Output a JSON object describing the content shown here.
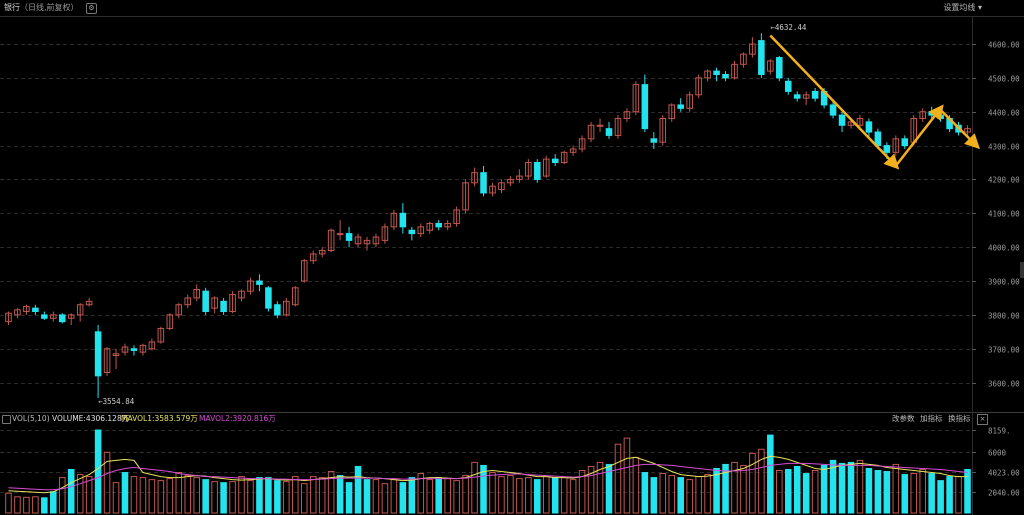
{
  "header": {
    "title": "银行",
    "subtitle": "（日线,前复权）",
    "settings_label": "设置均线 ▾"
  },
  "volume_header": {
    "label": "VOL(5,10)",
    "volume": "VOLUME:4306.128万",
    "mavol1": "MAVOL1:3583.579万",
    "mavol2": "MAVOL2:3920.816万",
    "buttons": [
      "改参数",
      "加指标",
      "换指标"
    ],
    "close": "×"
  },
  "colors": {
    "up": "#c0574e",
    "down": "#23e3ee",
    "ma1": "#e8e35a",
    "ma2": "#d64cd6",
    "arrow": "#f2b01e",
    "grid": "#2a2a2a",
    "axis_text": "#9a9a9a"
  },
  "chart_data": [
    {
      "type": "candlestick",
      "y_ticks": [
        3600,
        3700,
        3800,
        3900,
        4000,
        4100,
        4200,
        4300,
        4400,
        4500,
        4600
      ],
      "ylim": [
        3525,
        4665
      ],
      "annotations": [
        {
          "label": "←3554.84",
          "x_index": 10,
          "value": 3554.84
        },
        {
          "label": "←4632.44",
          "x_index": 85,
          "value": 4632.44
        }
      ],
      "candles": [
        [
          3780,
          3805,
          3770,
          3810
        ],
        [
          3800,
          3815,
          3790,
          3820
        ],
        [
          3810,
          3825,
          3800,
          3830
        ],
        [
          3820,
          3810,
          3800,
          3830
        ],
        [
          3800,
          3790,
          3785,
          3810
        ],
        [
          3790,
          3800,
          3780,
          3810
        ],
        [
          3800,
          3780,
          3775,
          3805
        ],
        [
          3790,
          3800,
          3770,
          3805
        ],
        [
          3800,
          3830,
          3780,
          3835
        ],
        [
          3830,
          3840,
          3825,
          3850
        ],
        [
          3750,
          3620,
          3555,
          3770
        ],
        [
          3630,
          3700,
          3620,
          3705
        ],
        [
          3680,
          3685,
          3640,
          3700
        ],
        [
          3690,
          3705,
          3680,
          3715
        ],
        [
          3700,
          3695,
          3680,
          3710
        ],
        [
          3690,
          3710,
          3680,
          3715
        ],
        [
          3700,
          3720,
          3695,
          3730
        ],
        [
          3720,
          3760,
          3715,
          3765
        ],
        [
          3760,
          3800,
          3755,
          3805
        ],
        [
          3800,
          3830,
          3790,
          3835
        ],
        [
          3830,
          3850,
          3820,
          3860
        ],
        [
          3850,
          3875,
          3840,
          3890
        ],
        [
          3870,
          3810,
          3800,
          3880
        ],
        [
          3820,
          3850,
          3805,
          3855
        ],
        [
          3840,
          3810,
          3800,
          3850
        ],
        [
          3810,
          3860,
          3805,
          3870
        ],
        [
          3850,
          3870,
          3840,
          3875
        ],
        [
          3870,
          3900,
          3860,
          3910
        ],
        [
          3900,
          3890,
          3870,
          3920
        ],
        [
          3880,
          3820,
          3810,
          3885
        ],
        [
          3830,
          3800,
          3790,
          3840
        ],
        [
          3800,
          3840,
          3795,
          3850
        ],
        [
          3830,
          3880,
          3825,
          3885
        ],
        [
          3900,
          3960,
          3895,
          3965
        ],
        [
          3960,
          3980,
          3950,
          3990
        ],
        [
          3980,
          3990,
          3970,
          4000
        ],
        [
          3990,
          4050,
          3985,
          4055
        ],
        [
          4040,
          4040,
          4020,
          4080
        ],
        [
          4040,
          4020,
          4000,
          4060
        ],
        [
          4010,
          4030,
          4000,
          4040
        ],
        [
          4010,
          4020,
          3990,
          4030
        ],
        [
          4010,
          4030,
          4000,
          4040
        ],
        [
          4020,
          4060,
          4010,
          4070
        ],
        [
          4060,
          4100,
          4050,
          4110
        ],
        [
          4100,
          4060,
          4040,
          4130
        ],
        [
          4050,
          4040,
          4020,
          4060
        ],
        [
          4040,
          4060,
          4030,
          4070
        ],
        [
          4050,
          4070,
          4040,
          4075
        ],
        [
          4070,
          4060,
          4050,
          4080
        ],
        [
          4060,
          4070,
          4050,
          4080
        ],
        [
          4070,
          4110,
          4060,
          4120
        ],
        [
          4110,
          4190,
          4100,
          4200
        ],
        [
          4190,
          4220,
          4180,
          4235
        ],
        [
          4220,
          4160,
          4150,
          4240
        ],
        [
          4160,
          4180,
          4150,
          4190
        ],
        [
          4170,
          4190,
          4160,
          4200
        ],
        [
          4190,
          4200,
          4180,
          4210
        ],
        [
          4200,
          4210,
          4190,
          4230
        ],
        [
          4210,
          4250,
          4200,
          4260
        ],
        [
          4250,
          4200,
          4190,
          4260
        ],
        [
          4210,
          4260,
          4205,
          4270
        ],
        [
          4260,
          4250,
          4240,
          4275
        ],
        [
          4250,
          4280,
          4245,
          4285
        ],
        [
          4280,
          4290,
          4270,
          4300
        ],
        [
          4290,
          4320,
          4280,
          4330
        ],
        [
          4320,
          4360,
          4310,
          4370
        ],
        [
          4360,
          4360,
          4340,
          4380
        ],
        [
          4350,
          4330,
          4320,
          4370
        ],
        [
          4330,
          4380,
          4320,
          4390
        ],
        [
          4380,
          4400,
          4370,
          4410
        ],
        [
          4400,
          4480,
          4390,
          4490
        ],
        [
          4480,
          4350,
          4340,
          4510
        ],
        [
          4320,
          4310,
          4290,
          4340
        ],
        [
          4310,
          4380,
          4300,
          4390
        ],
        [
          4380,
          4420,
          4370,
          4425
        ],
        [
          4420,
          4410,
          4400,
          4440
        ],
        [
          4410,
          4450,
          4400,
          4460
        ],
        [
          4450,
          4500,
          4440,
          4510
        ],
        [
          4500,
          4520,
          4490,
          4525
        ],
        [
          4520,
          4510,
          4490,
          4530
        ],
        [
          4510,
          4500,
          4490,
          4520
        ],
        [
          4500,
          4540,
          4495,
          4550
        ],
        [
          4540,
          4570,
          4530,
          4575
        ],
        [
          4570,
          4600,
          4560,
          4620
        ],
        [
          4610,
          4510,
          4500,
          4632
        ],
        [
          4520,
          4550,
          4510,
          4555
        ],
        [
          4560,
          4500,
          4490,
          4565
        ],
        [
          4490,
          4460,
          4450,
          4500
        ],
        [
          4450,
          4440,
          4430,
          4460
        ],
        [
          4440,
          4450,
          4420,
          4460
        ],
        [
          4460,
          4440,
          4430,
          4470
        ],
        [
          4460,
          4420,
          4410,
          4470
        ],
        [
          4420,
          4390,
          4380,
          4430
        ],
        [
          4390,
          4360,
          4340,
          4400
        ],
        [
          4360,
          4370,
          4350,
          4380
        ],
        [
          4360,
          4380,
          4350,
          4390
        ],
        [
          4370,
          4340,
          4320,
          4380
        ],
        [
          4340,
          4300,
          4290,
          4350
        ],
        [
          4300,
          4280,
          4260,
          4310
        ],
        [
          4280,
          4320,
          4270,
          4330
        ],
        [
          4320,
          4300,
          4290,
          4330
        ],
        [
          4310,
          4380,
          4300,
          4390
        ],
        [
          4380,
          4400,
          4370,
          4410
        ],
        [
          4400,
          4390,
          4380,
          4415
        ],
        [
          4390,
          4380,
          4370,
          4400
        ],
        [
          4380,
          4350,
          4340,
          4390
        ],
        [
          4360,
          4340,
          4330,
          4370
        ],
        [
          4340,
          4350,
          4330,
          4360
        ]
      ]
    },
    {
      "type": "bar",
      "y_ticks": [
        2040,
        4023,
        6000,
        8159
      ],
      "y_tick_labels": [
        "2040.00",
        "4023.00",
        "6000",
        "8159."
      ],
      "ylim": [
        0,
        8500
      ],
      "values": [
        1960,
        1600,
        1550,
        1600,
        1500,
        2100,
        3500,
        4300,
        3800,
        3600,
        8200,
        6000,
        3000,
        4000,
        3600,
        3500,
        3300,
        3200,
        3400,
        4000,
        3700,
        3500,
        3300,
        3100,
        3000,
        3100,
        3600,
        3200,
        3500,
        3500,
        3200,
        3100,
        3600,
        2900,
        3600,
        3500,
        4100,
        3700,
        3000,
        4600,
        3300,
        3300,
        2900,
        3300,
        3000,
        3500,
        3900,
        3300,
        3500,
        3400,
        3200,
        3700,
        5000,
        4700,
        4000,
        3600,
        3700,
        3400,
        3500,
        3300,
        3600,
        3500,
        3500,
        3300,
        4200,
        4600,
        5000,
        4800,
        6800,
        7400,
        5500,
        4000,
        3500,
        3900,
        3700,
        3500,
        3300,
        3600,
        3800,
        4400,
        4800,
        5000,
        4700,
        5900,
        6300,
        7700,
        4200,
        4300,
        4600,
        3900,
        4200,
        4700,
        5200,
        4900,
        5000,
        5200,
        4400,
        4200,
        4100,
        4800,
        3800,
        3900,
        4300,
        3900,
        3200,
        3600,
        3600,
        4300
      ],
      "colors_up": [
        1,
        1,
        1,
        1,
        0,
        0,
        1,
        0,
        1,
        1,
        0,
        1,
        1,
        0,
        1,
        1,
        1,
        1,
        1,
        1,
        1,
        1,
        0,
        1,
        0,
        1,
        1,
        1,
        0,
        0,
        0,
        1,
        1,
        1,
        1,
        1,
        1,
        0,
        0,
        0,
        0,
        1,
        1,
        1,
        0,
        0,
        1,
        1,
        0,
        1,
        1,
        1,
        1,
        0,
        1,
        1,
        1,
        1,
        1,
        0,
        1,
        0,
        1,
        1,
        1,
        1,
        1,
        0,
        1,
        1,
        1,
        0,
        0,
        1,
        1,
        0,
        1,
        1,
        1,
        0,
        0,
        1,
        1,
        1,
        1,
        0,
        1,
        0,
        0,
        0,
        1,
        0,
        0,
        0,
        0,
        1,
        0,
        0,
        0,
        1,
        0,
        1,
        1,
        0,
        0,
        0,
        1,
        0
      ],
      "ma1": [
        2200,
        2150,
        2100,
        2050,
        2000,
        2100,
        2500,
        3000,
        3400,
        3800,
        4400,
        5100,
        5200,
        5300,
        5200,
        4000,
        3800,
        3600,
        3500,
        3500,
        3600,
        3700,
        3650,
        3500,
        3400,
        3300,
        3250,
        3300,
        3350,
        3400,
        3300,
        3250,
        3300,
        3200,
        3300,
        3400,
        3500,
        3600,
        3550,
        3600,
        3500,
        3450,
        3400,
        3300,
        3200,
        3250,
        3400,
        3500,
        3500,
        3450,
        3400,
        3500,
        3800,
        4100,
        4200,
        4100,
        4000,
        3900,
        3750,
        3600,
        3600,
        3500,
        3500,
        3450,
        3600,
        3900,
        4300,
        4600,
        5000,
        5400,
        5500,
        5200,
        4900,
        4500,
        4100,
        3800,
        3700,
        3600,
        3650,
        3800,
        4000,
        4200,
        4400,
        4800,
        5300,
        5600,
        5500,
        5300,
        5000,
        4700,
        4400,
        4300,
        4500,
        4700,
        4800,
        4900,
        4800,
        4700,
        4500,
        4400,
        4300,
        4200,
        4100,
        4000,
        3900,
        3700,
        3600,
        3600
      ],
      "ma2": [
        2500,
        2450,
        2400,
        2350,
        2300,
        2300,
        2400,
        2600,
        2900,
        3200,
        3500,
        3900,
        4200,
        4400,
        4500,
        4400,
        4300,
        4200,
        4100,
        3900,
        3800,
        3700,
        3600,
        3600,
        3550,
        3500,
        3450,
        3400,
        3400,
        3400,
        3350,
        3350,
        3300,
        3300,
        3300,
        3350,
        3400,
        3450,
        3450,
        3450,
        3450,
        3450,
        3400,
        3400,
        3350,
        3350,
        3400,
        3400,
        3400,
        3400,
        3400,
        3450,
        3550,
        3650,
        3750,
        3800,
        3850,
        3850,
        3800,
        3750,
        3700,
        3650,
        3600,
        3550,
        3600,
        3700,
        3900,
        4100,
        4300,
        4500,
        4700,
        4800,
        4800,
        4750,
        4700,
        4600,
        4500,
        4400,
        4300,
        4200,
        4150,
        4150,
        4200,
        4300,
        4500,
        4700,
        4800,
        4900,
        4900,
        4900,
        4850,
        4800,
        4750,
        4700,
        4700,
        4700,
        4700,
        4650,
        4600,
        4550,
        4500,
        4450,
        4400,
        4350,
        4300,
        4200,
        4100,
        4000
      ]
    }
  ]
}
